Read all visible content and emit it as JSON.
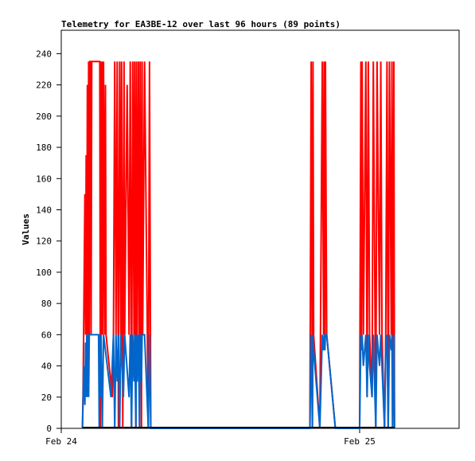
{
  "chart_data": {
    "type": "line",
    "title": "Telemetry for EA3BE-12 over last 96 hours (89 points)",
    "xlabel": "",
    "ylabel": "Values",
    "x_axis": {
      "min": 0,
      "max": 32,
      "ticks": [
        {
          "value": 0,
          "label": "Feb 24"
        },
        {
          "value": 24,
          "label": "Feb 25"
        }
      ]
    },
    "y_axis": {
      "min": 0,
      "max": 255,
      "ticks": [
        0,
        20,
        40,
        60,
        80,
        100,
        120,
        140,
        160,
        180,
        200,
        220,
        240
      ]
    },
    "grid": false,
    "legend": "none",
    "series": [
      {
        "color": "#ff0000",
        "points": [
          [
            1.7,
            0
          ],
          [
            1.75,
            20
          ],
          [
            1.8,
            60
          ],
          [
            1.9,
            150
          ],
          [
            1.95,
            60
          ],
          [
            2.0,
            175
          ],
          [
            2.05,
            60
          ],
          [
            2.1,
            220
          ],
          [
            2.15,
            60
          ],
          [
            2.2,
            235
          ],
          [
            2.25,
            60
          ],
          [
            2.3,
            235
          ],
          [
            2.35,
            235
          ],
          [
            2.4,
            60
          ],
          [
            2.45,
            235
          ],
          [
            2.5,
            235
          ],
          [
            3.1,
            235
          ],
          [
            3.15,
            0
          ],
          [
            3.2,
            235
          ],
          [
            3.25,
            60
          ],
          [
            3.3,
            235
          ],
          [
            3.35,
            60
          ],
          [
            3.4,
            235
          ],
          [
            3.5,
            60
          ],
          [
            3.55,
            220
          ],
          [
            3.6,
            60
          ],
          [
            4.1,
            20
          ],
          [
            4.2,
            60
          ],
          [
            4.3,
            235
          ],
          [
            4.4,
            60
          ],
          [
            4.5,
            235
          ],
          [
            4.6,
            0
          ],
          [
            4.7,
            235
          ],
          [
            4.8,
            60
          ],
          [
            4.85,
            235
          ],
          [
            4.95,
            0
          ],
          [
            5.05,
            235
          ],
          [
            5.1,
            60
          ],
          [
            5.3,
            220
          ],
          [
            5.45,
            60
          ],
          [
            5.55,
            235
          ],
          [
            5.65,
            0
          ],
          [
            5.75,
            235
          ],
          [
            5.85,
            60
          ],
          [
            5.9,
            235
          ],
          [
            6.0,
            0
          ],
          [
            6.05,
            235
          ],
          [
            6.1,
            30
          ],
          [
            6.2,
            235
          ],
          [
            6.3,
            0
          ],
          [
            6.35,
            235
          ],
          [
            6.45,
            0
          ],
          [
            6.5,
            235
          ],
          [
            6.55,
            60
          ],
          [
            6.7,
            235
          ],
          [
            7.0,
            0
          ],
          [
            7.1,
            235
          ],
          [
            7.2,
            0
          ],
          [
            20.0,
            0
          ],
          [
            20.1,
            235
          ],
          [
            20.2,
            0
          ],
          [
            20.25,
            235
          ],
          [
            20.3,
            60
          ],
          [
            20.8,
            0
          ],
          [
            21.0,
            235
          ],
          [
            21.1,
            60
          ],
          [
            21.15,
            235
          ],
          [
            21.2,
            60
          ],
          [
            21.25,
            235
          ],
          [
            21.35,
            60
          ],
          [
            22.05,
            0
          ],
          [
            24.0,
            0
          ],
          [
            24.1,
            235
          ],
          [
            24.15,
            60
          ],
          [
            24.2,
            235
          ],
          [
            24.3,
            60
          ],
          [
            24.5,
            235
          ],
          [
            24.6,
            20
          ],
          [
            24.7,
            235
          ],
          [
            24.8,
            60
          ],
          [
            25.0,
            20
          ],
          [
            25.1,
            235
          ],
          [
            25.3,
            0
          ],
          [
            25.4,
            235
          ],
          [
            25.6,
            60
          ],
          [
            25.7,
            235
          ],
          [
            25.8,
            60
          ],
          [
            26.0,
            0
          ],
          [
            26.1,
            60
          ],
          [
            26.2,
            235
          ],
          [
            26.3,
            0
          ],
          [
            26.4,
            235
          ],
          [
            26.55,
            60
          ],
          [
            26.6,
            235
          ],
          [
            26.65,
            0
          ],
          [
            26.75,
            235
          ],
          [
            26.8,
            0
          ]
        ]
      },
      {
        "color": "#0066cc",
        "points": [
          [
            1.7,
            0
          ],
          [
            1.75,
            15
          ],
          [
            1.8,
            40
          ],
          [
            1.9,
            15
          ],
          [
            1.95,
            55
          ],
          [
            2.0,
            20
          ],
          [
            2.05,
            60
          ],
          [
            2.1,
            20
          ],
          [
            2.15,
            60
          ],
          [
            2.2,
            20
          ],
          [
            2.25,
            60
          ],
          [
            3.0,
            60
          ],
          [
            3.05,
            0
          ],
          [
            3.1,
            60
          ],
          [
            3.15,
            20
          ],
          [
            3.2,
            60
          ],
          [
            3.3,
            0
          ],
          [
            3.4,
            60
          ],
          [
            4.0,
            20
          ],
          [
            4.2,
            60
          ],
          [
            4.3,
            0
          ],
          [
            4.4,
            60
          ],
          [
            4.5,
            30
          ],
          [
            4.6,
            60
          ],
          [
            4.7,
            0
          ],
          [
            4.8,
            60
          ],
          [
            5.0,
            20
          ],
          [
            5.1,
            60
          ],
          [
            5.45,
            20
          ],
          [
            5.55,
            60
          ],
          [
            5.65,
            0
          ],
          [
            5.75,
            60
          ],
          [
            5.85,
            30
          ],
          [
            5.9,
            60
          ],
          [
            6.0,
            0
          ],
          [
            6.05,
            60
          ],
          [
            6.1,
            30
          ],
          [
            6.2,
            60
          ],
          [
            6.3,
            0
          ],
          [
            6.35,
            60
          ],
          [
            6.45,
            30
          ],
          [
            6.5,
            60
          ],
          [
            6.7,
            60
          ],
          [
            7.0,
            0
          ],
          [
            7.1,
            60
          ],
          [
            7.2,
            0
          ],
          [
            20.0,
            0
          ],
          [
            20.1,
            60
          ],
          [
            20.2,
            0
          ],
          [
            20.25,
            60
          ],
          [
            20.3,
            50
          ],
          [
            20.8,
            0
          ],
          [
            21.0,
            60
          ],
          [
            21.1,
            50
          ],
          [
            21.15,
            60
          ],
          [
            21.2,
            50
          ],
          [
            21.25,
            60
          ],
          [
            21.35,
            60
          ],
          [
            22.05,
            0
          ],
          [
            24.0,
            0
          ],
          [
            24.1,
            60
          ],
          [
            24.15,
            50
          ],
          [
            24.2,
            60
          ],
          [
            24.3,
            40
          ],
          [
            24.5,
            60
          ],
          [
            24.6,
            20
          ],
          [
            24.7,
            60
          ],
          [
            24.8,
            40
          ],
          [
            25.0,
            20
          ],
          [
            25.1,
            60
          ],
          [
            25.3,
            0
          ],
          [
            25.4,
            60
          ],
          [
            25.6,
            40
          ],
          [
            25.7,
            60
          ],
          [
            25.8,
            40
          ],
          [
            26.0,
            0
          ],
          [
            26.1,
            50
          ],
          [
            26.2,
            60
          ],
          [
            26.3,
            0
          ],
          [
            26.4,
            60
          ],
          [
            26.55,
            50
          ],
          [
            26.6,
            60
          ],
          [
            26.65,
            0
          ],
          [
            26.75,
            60
          ],
          [
            26.8,
            0
          ]
        ]
      }
    ],
    "baseline": {
      "color": "#000000",
      "from": 1.7,
      "to": 26.8,
      "value": 0
    }
  }
}
